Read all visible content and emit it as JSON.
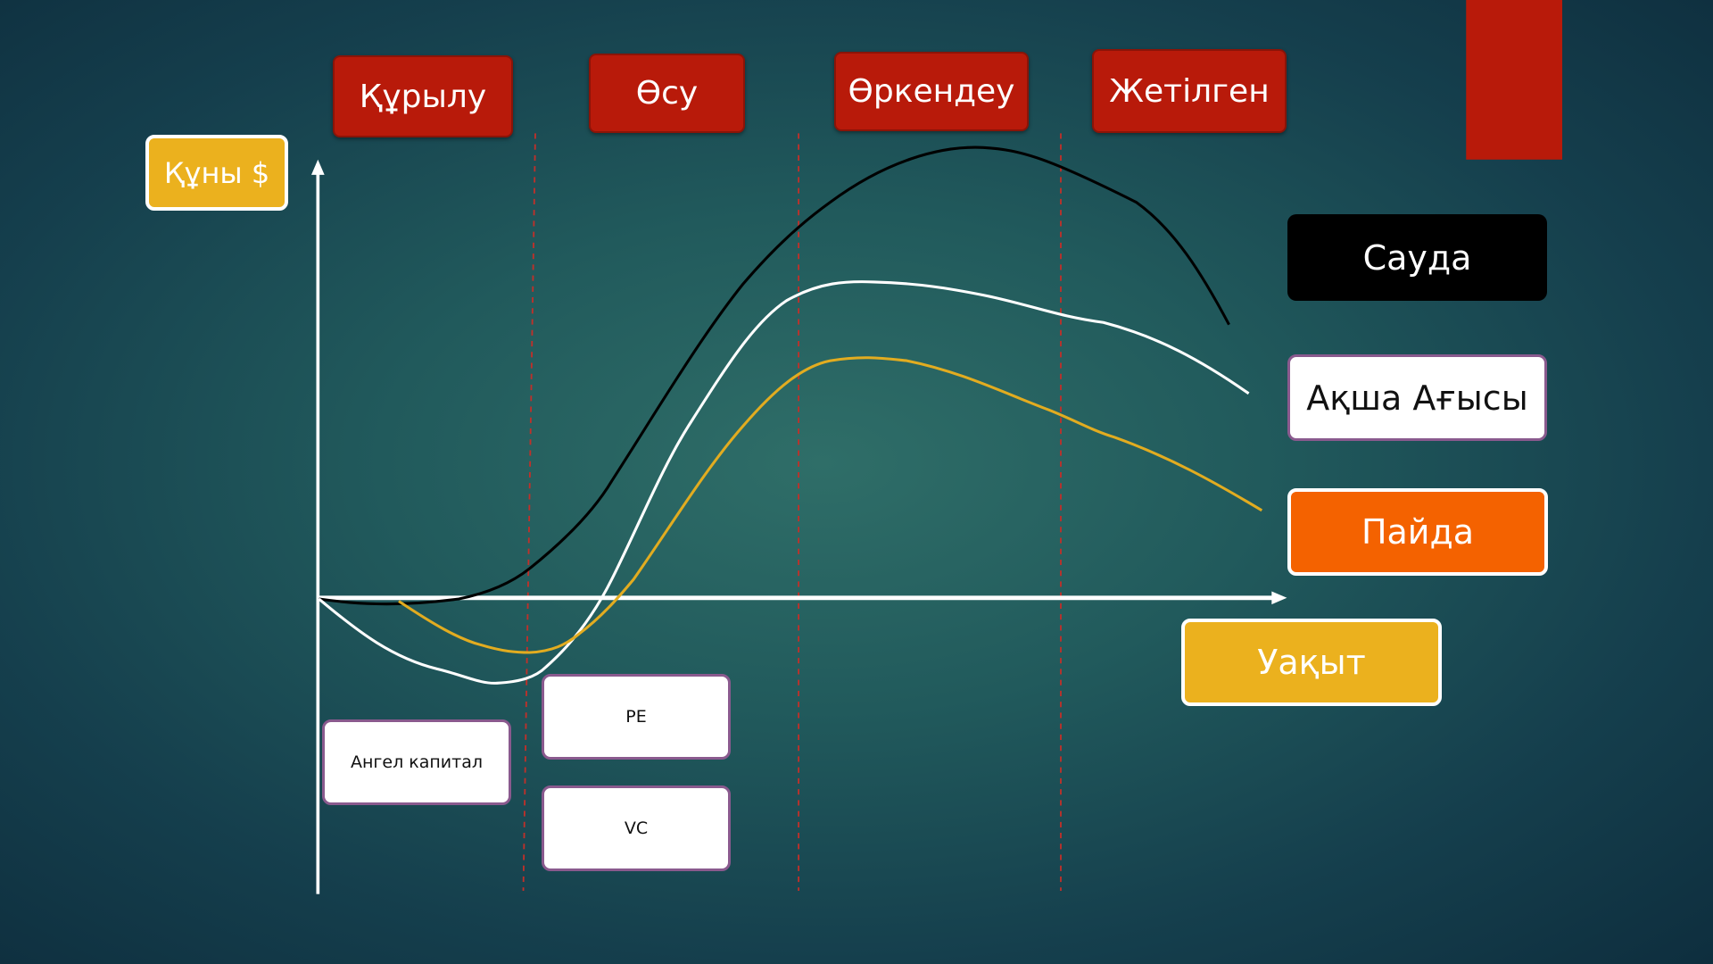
{
  "y_axis_label": "Құны $",
  "x_axis_label": "Уақыт",
  "stages": [
    "Құрылу",
    "Өсу",
    "Өркендеу",
    "Жетілген"
  ],
  "legend": [
    {
      "label": "Сауда",
      "color": "#000000"
    },
    {
      "label": "Ақша Ағысы",
      "color": "#ffffff"
    },
    {
      "label": "Пайда",
      "color": "#f46200"
    }
  ],
  "funding": {
    "angel": "Ангел капитал",
    "pe": "PE",
    "vc": "VC"
  },
  "colors": {
    "stage": "#b81a0a",
    "axis_label": "#ebb11e",
    "profit_line": "#e2ac20",
    "accent_bar": "#b81a0a"
  }
}
